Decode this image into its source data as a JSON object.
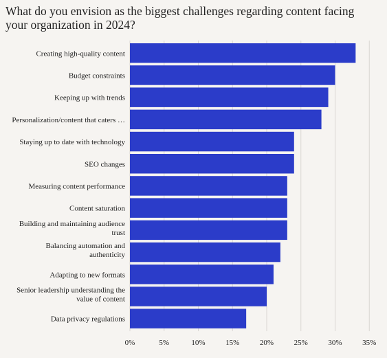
{
  "chart_data": {
    "type": "bar",
    "orientation": "horizontal",
    "title": "What do you envision as the biggest challenges regarding content facing your organization in 2024?",
    "categories": [
      "Creating high-quality content",
      "Budget constraints",
      "Keeping up with trends",
      "Personalization/content that caters …",
      "Staying up to date with technology",
      "SEO changes",
      "Measuring content performance",
      "Content saturation",
      "Building and maintaining audience trust",
      "Balancing automation and authenticity",
      "Adapting to new formats",
      "Senior leadership understanding the value of content",
      "Data privacy regulations"
    ],
    "values": [
      33,
      30,
      29,
      28,
      24,
      24,
      23,
      23,
      23,
      22,
      21,
      20,
      17
    ],
    "xlim": [
      0,
      35
    ],
    "x_ticks": [
      "0%",
      "5%",
      "10%",
      "15%",
      "20%",
      "25%",
      "30%",
      "35%"
    ],
    "grid": true,
    "bar_color": "#2b3cc9"
  }
}
